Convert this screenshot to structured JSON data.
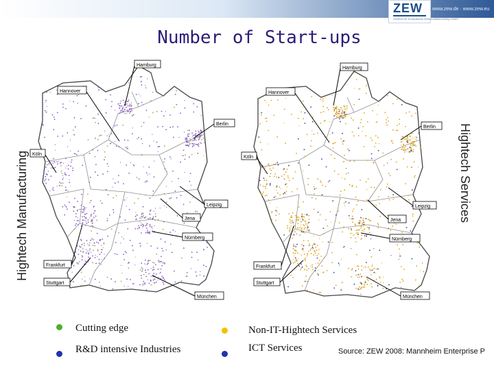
{
  "header": {
    "logo_text": "ZEW",
    "logo_subtitle": "Zentrum für Europäische Wirtschaftsforschung GmbH",
    "url_text": "www.zew.de · www.zew.eu"
  },
  "title": "Number of Start-ups",
  "left_axis_label": "Hightech Manufacturing",
  "right_axis_label": "Hightech Services",
  "maps": {
    "left": {
      "dot_colors": [
        "#8a5cc7",
        "#9fa850"
      ],
      "cities": [
        "Hamburg",
        "Hannover",
        "Berlin",
        "Köln",
        "Leipzig",
        "Jena",
        "Nürnberg",
        "Frankfurt",
        "Stuttgart",
        "München"
      ]
    },
    "right": {
      "dot_colors": [
        "#e0a318",
        "#3a4590"
      ],
      "cities": [
        "Hamburg",
        "Hannover",
        "Berlin",
        "Köln",
        "Leipzig",
        "Jena",
        "Nürnberg",
        "Frankfurt",
        "Stuttgart",
        "München"
      ]
    }
  },
  "legend": [
    {
      "label": "Cutting edge",
      "color": "#4caf2e"
    },
    {
      "label": "R&D intensive Industries",
      "color": "#2233aa"
    },
    {
      "label": "Non-IT-Hightech Services",
      "color": "#f2c200"
    },
    {
      "label": "ICT Services",
      "color": "#2233aa"
    }
  ],
  "source": "Source: ZEW 2008: Mannheim Enterprise P"
}
